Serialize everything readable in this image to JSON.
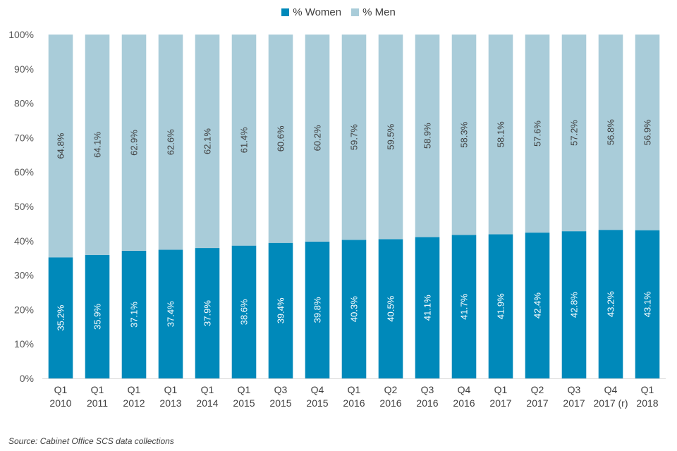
{
  "chart_data": {
    "type": "bar",
    "stacked": true,
    "title": "",
    "xlabel": "",
    "ylabel": "",
    "ylim": [
      0,
      100
    ],
    "yticks": [
      "0%",
      "10%",
      "20%",
      "30%",
      "40%",
      "50%",
      "60%",
      "70%",
      "80%",
      "90%",
      "100%"
    ],
    "grid": false,
    "legend_position": "top-center",
    "categories": [
      [
        "Q1",
        "2010"
      ],
      [
        "Q1",
        "2011"
      ],
      [
        "Q1",
        "2012"
      ],
      [
        "Q1",
        "2013"
      ],
      [
        "Q1",
        "2014"
      ],
      [
        "Q1",
        "2015"
      ],
      [
        "Q3",
        "2015"
      ],
      [
        "Q4",
        "2015"
      ],
      [
        "Q1",
        "2016"
      ],
      [
        "Q2",
        "2016"
      ],
      [
        "Q3",
        "2016"
      ],
      [
        "Q4",
        "2016"
      ],
      [
        "Q1",
        "2017"
      ],
      [
        "Q2",
        "2017"
      ],
      [
        "Q3",
        "2017"
      ],
      [
        "Q4",
        "2017 (r)"
      ],
      [
        "Q1",
        "2018"
      ]
    ],
    "series": [
      {
        "name": "% Women",
        "color": "#0089BA",
        "values": [
          35.2,
          35.9,
          37.1,
          37.4,
          37.9,
          38.6,
          39.4,
          39.8,
          40.3,
          40.5,
          41.1,
          41.7,
          41.9,
          42.4,
          42.8,
          43.2,
          43.1
        ],
        "labels": [
          "35.2%",
          "35.9%",
          "37.1%",
          "37.4%",
          "37.9%",
          "38.6%",
          "39.4%",
          "39.8%",
          "40.3%",
          "40.5%",
          "41.1%",
          "41.7%",
          "41.9%",
          "42.4%",
          "42.8%",
          "43.2%",
          "43.1%"
        ]
      },
      {
        "name": "% Men",
        "color": "#A9CCD9",
        "values": [
          64.8,
          64.1,
          62.9,
          62.6,
          62.1,
          61.4,
          60.6,
          60.2,
          59.7,
          59.5,
          58.9,
          58.3,
          58.1,
          57.6,
          57.2,
          56.8,
          56.9
        ],
        "labels": [
          "64.8%",
          "64.1%",
          "62.9%",
          "62.6%",
          "62.1%",
          "61.4%",
          "60.6%",
          "60.2%",
          "59.7%",
          "59.5%",
          "58.9%",
          "58.3%",
          "58.1%",
          "57.6%",
          "57.2%",
          "56.8%",
          "56.9%"
        ]
      }
    ]
  },
  "legend": {
    "women_label": "% Women",
    "men_label": "% Men"
  },
  "source_note": "Source: Cabinet Office SCS data collections"
}
